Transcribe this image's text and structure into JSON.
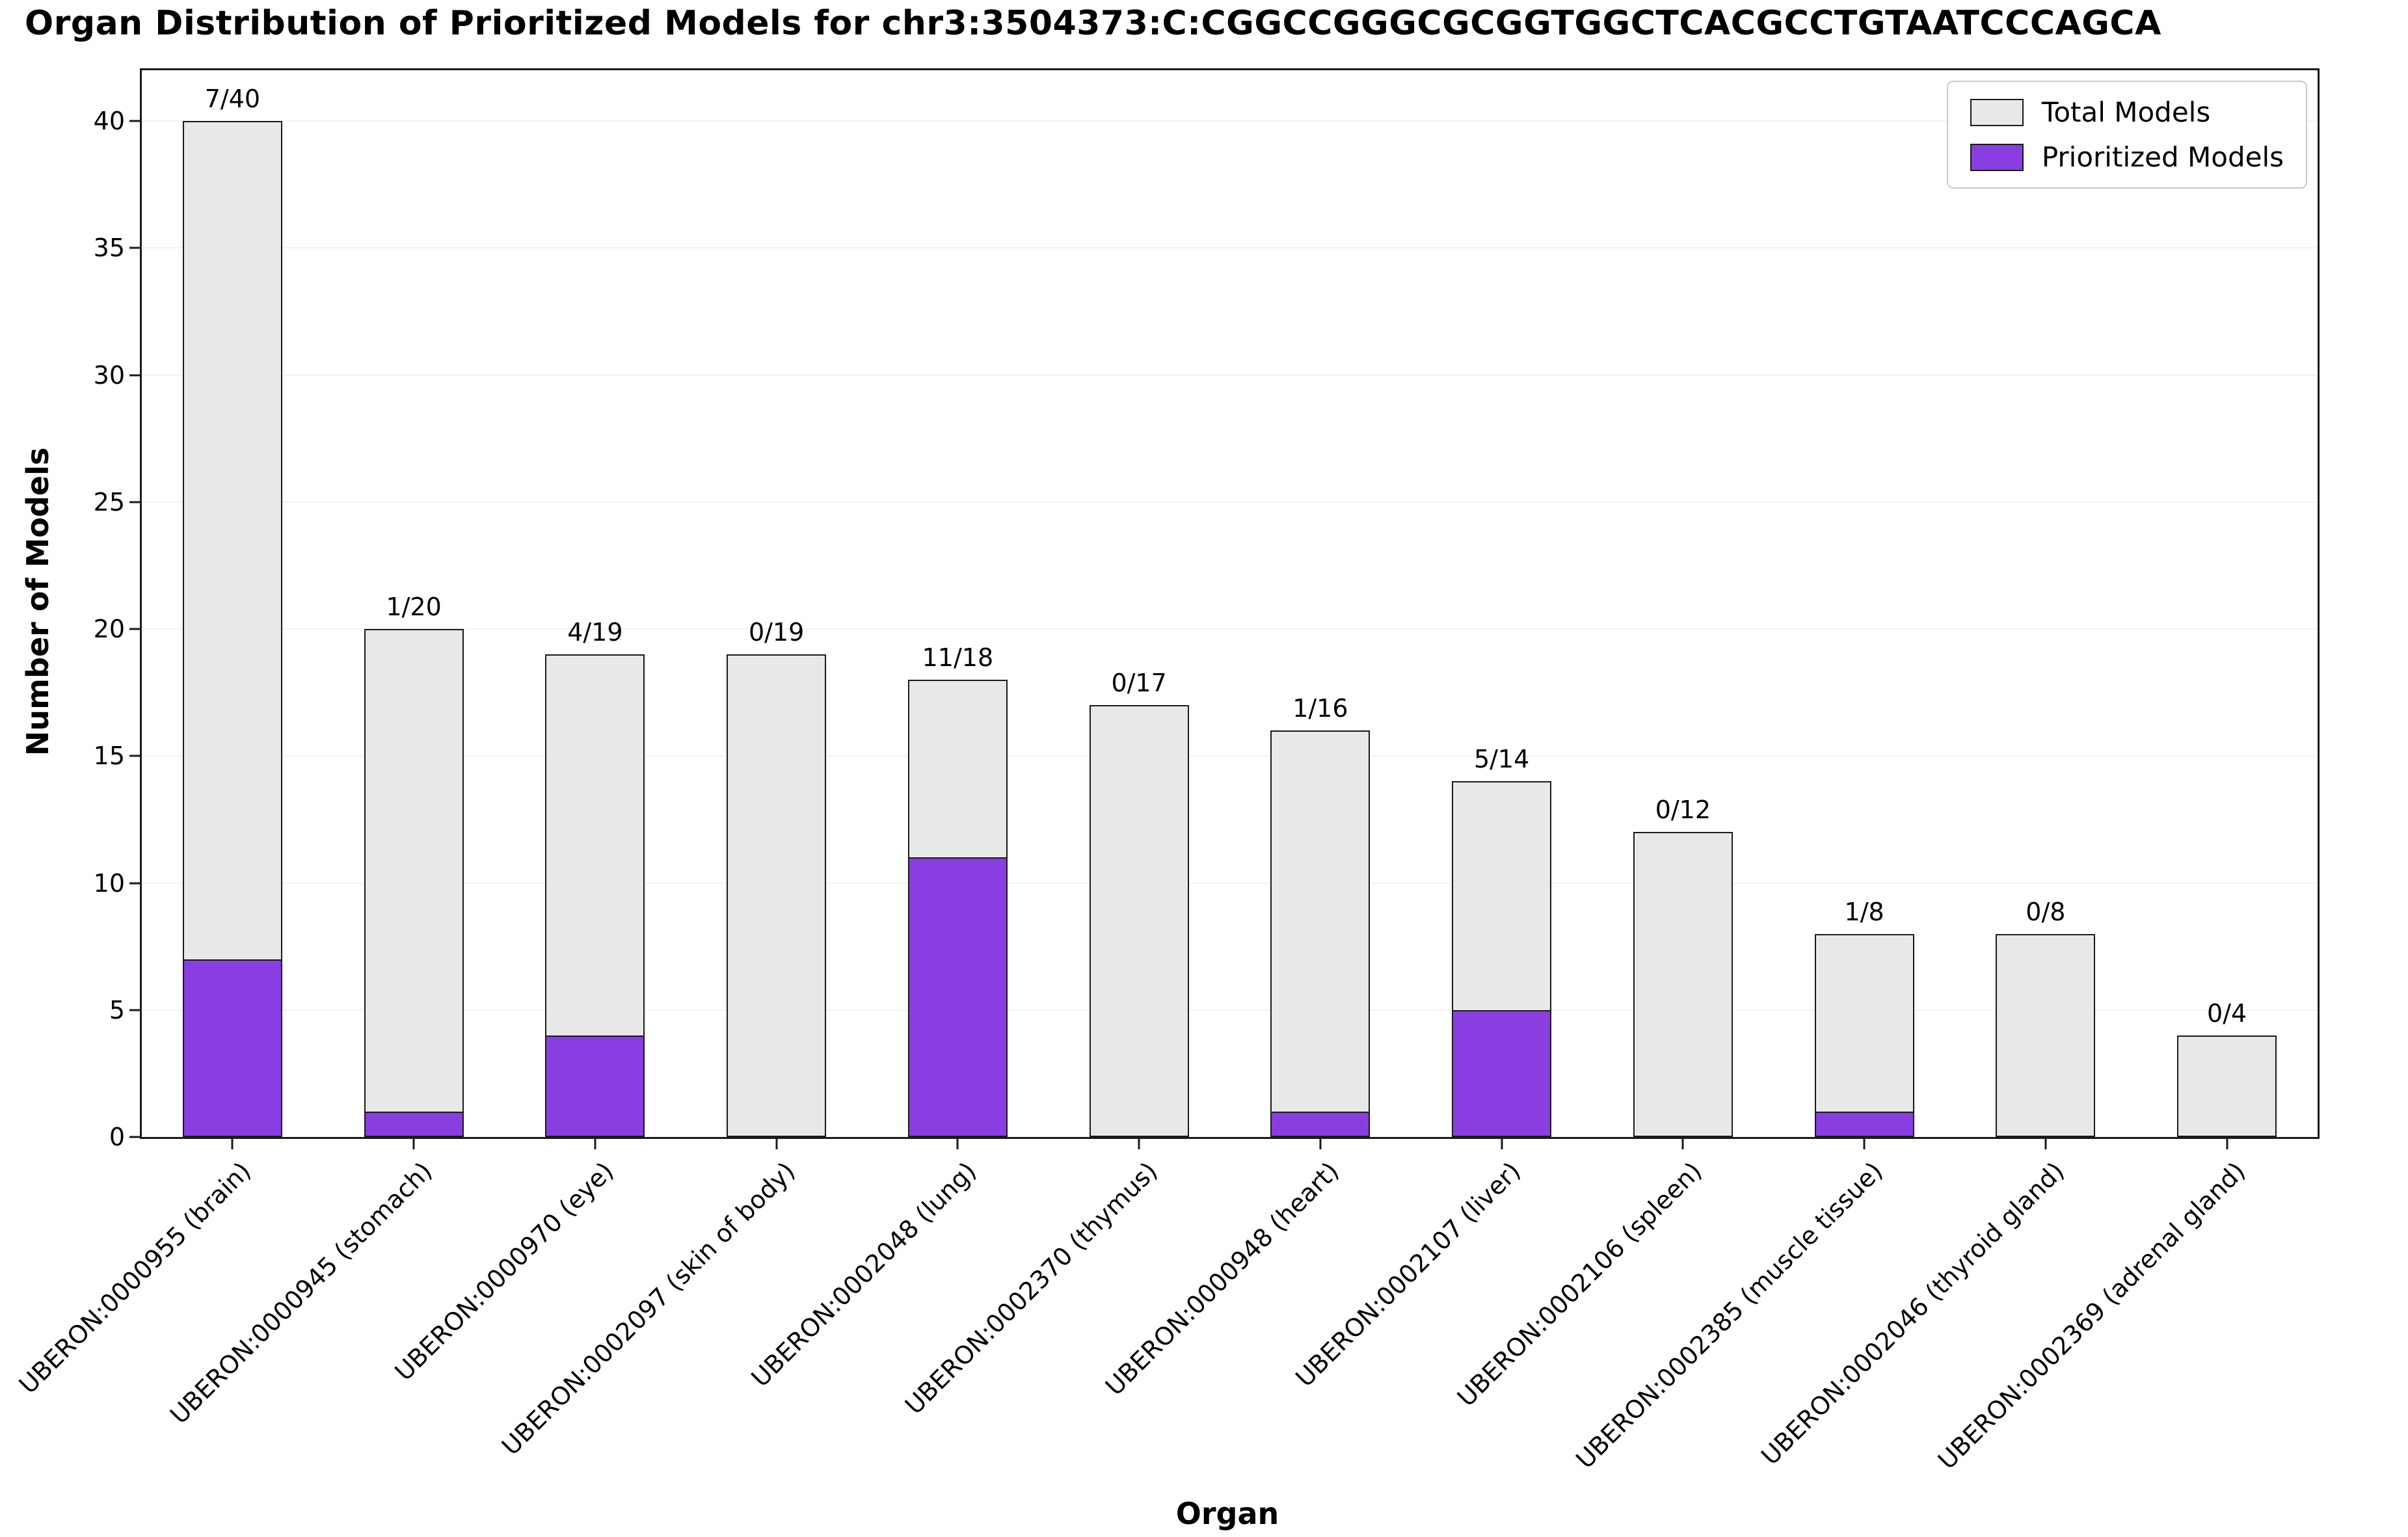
{
  "chart_data": {
    "type": "bar",
    "title": "Organ Distribution of Prioritized Models for chr3:3504373:C:CGGCCGGGCGCGGTGGCTCACGCCTGTAATCCCAGCA",
    "xlabel": "Organ",
    "ylabel": "Number of Models",
    "ylim": [
      0,
      42
    ],
    "yticks": [
      0,
      5,
      10,
      15,
      20,
      25,
      30,
      35,
      40
    ],
    "grid": "faint-horizontal",
    "legend_position": "upper-right",
    "categories": [
      "UBERON:0000955 (brain)",
      "UBERON:0000945 (stomach)",
      "UBERON:0000970 (eye)",
      "UBERON:0002097 (skin of body)",
      "UBERON:0002048 (lung)",
      "UBERON:0002370 (thymus)",
      "UBERON:0000948 (heart)",
      "UBERON:0002107 (liver)",
      "UBERON:0002106 (spleen)",
      "UBERON:0002385 (muscle tissue)",
      "UBERON:0002046 (thyroid gland)",
      "UBERON:0002369 (adrenal gland)"
    ],
    "series": [
      {
        "name": "Total Models",
        "color": "#e8e8e8",
        "values": [
          40,
          20,
          19,
          19,
          18,
          17,
          16,
          14,
          12,
          8,
          8,
          4
        ]
      },
      {
        "name": "Prioritized Models",
        "color": "#8a3ee2",
        "values": [
          7,
          1,
          4,
          0,
          11,
          0,
          1,
          5,
          0,
          1,
          0,
          0
        ]
      }
    ],
    "bar_labels": [
      "7/40",
      "1/20",
      "4/19",
      "0/19",
      "11/18",
      "0/17",
      "1/16",
      "5/14",
      "0/12",
      "1/8",
      "0/8",
      "0/4"
    ],
    "edge_color": "#1a1a1a"
  }
}
